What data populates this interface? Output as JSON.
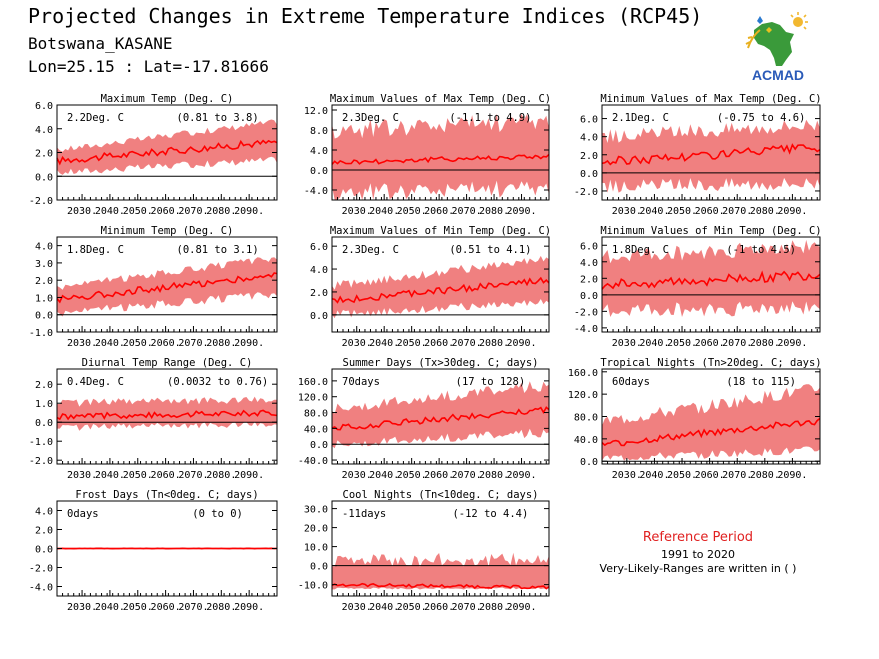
{
  "header": {
    "title": "Projected Changes in Extreme Temperature Indices (RCP45)",
    "location": "Botswana_KASANE",
    "coords": "Lon=25.15 : Lat=-17.81666"
  },
  "logo": {
    "text": "ACMAD"
  },
  "reference": {
    "title": "Reference Period",
    "period": "1991 to 2020",
    "note": "Very-Likely-Ranges are written in ( )"
  },
  "colors": {
    "band": "#f08080",
    "line": "#ff0000",
    "zero": "#000000",
    "ref_title": "#e02020"
  },
  "chart_data": [
    {
      "type": "line",
      "title": "Maximum Temp (Deg. C)",
      "mean": "2.2Deg. C",
      "range": "(0.81 to 3.8)",
      "ylim": [
        -2,
        6
      ],
      "yticks": [
        6,
        4,
        2,
        0,
        -2
      ],
      "xticks": [
        2030,
        2040,
        2050,
        2060,
        2070,
        2080,
        2090
      ],
      "x_range": [
        2021,
        2100
      ],
      "series": [
        {
          "values": {
            "start": 1.3,
            "end": 2.9,
            "noise": 0.3,
            "band_low": [
              0.3,
              1.4
            ],
            "band_high": [
              2.2,
              4.6
            ]
          }
        }
      ]
    },
    {
      "type": "line",
      "title": "Maximum Values of Max Temp (Deg. C)",
      "mean": "2.3Deg. C",
      "range": "(-1.1 to 4.9)",
      "ylim": [
        -6,
        13
      ],
      "yticks": [
        12,
        8,
        4,
        0,
        -4
      ],
      "xticks": [
        2030,
        2040,
        2050,
        2060,
        2070,
        2080,
        2090
      ],
      "x_range": [
        2021,
        2100
      ],
      "series": [
        {
          "values": {
            "start": 1.5,
            "end": 2.8,
            "noise": 0.5,
            "band_low": [
              -4.5,
              -3.5
            ],
            "band_high": [
              8,
              10
            ]
          }
        }
      ]
    },
    {
      "type": "line",
      "title": "Minimum Values of Max Temp (Deg. C)",
      "mean": "2.1Deg. C",
      "range": "(-0.75 to 4.6)",
      "ylim": [
        -3,
        7.5
      ],
      "yticks": [
        6,
        4,
        2,
        0,
        -2
      ],
      "xticks": [
        2030,
        2040,
        2050,
        2060,
        2070,
        2080,
        2090
      ],
      "x_range": [
        2021,
        2100
      ],
      "series": [
        {
          "values": {
            "start": 1.2,
            "end": 2.8,
            "noise": 0.5,
            "band_low": [
              -1.5,
              -1
            ],
            "band_high": [
              4,
              5.5
            ]
          }
        }
      ]
    },
    {
      "type": "line",
      "title": "Minimum Temp (Deg. C)",
      "mean": "1.8Deg. C",
      "range": "(0.81 to 3.1)",
      "ylim": [
        -1,
        4.5
      ],
      "yticks": [
        4,
        3,
        2,
        1,
        0,
        -1
      ],
      "xticks": [
        2030,
        2040,
        2050,
        2060,
        2070,
        2080,
        2090
      ],
      "x_range": [
        2021,
        2100
      ],
      "series": [
        {
          "values": {
            "start": 0.9,
            "end": 2.3,
            "noise": 0.2,
            "band_low": [
              0.1,
              1.2
            ],
            "band_high": [
              1.6,
              3.3
            ]
          }
        }
      ]
    },
    {
      "type": "line",
      "title": "Maximum Values of Min Temp (Deg. C)",
      "mean": "2.3Deg. C",
      "range": "(0.51 to 4.1)",
      "ylim": [
        -1.5,
        6.8
      ],
      "yticks": [
        6,
        4,
        2,
        0
      ],
      "xticks": [
        2030,
        2040,
        2050,
        2060,
        2070,
        2080,
        2090
      ],
      "x_range": [
        2021,
        2100
      ],
      "series": [
        {
          "values": {
            "start": 1.2,
            "end": 3,
            "noise": 0.3,
            "band_low": [
              0,
              1.2
            ],
            "band_high": [
              2.5,
              5
            ]
          }
        }
      ]
    },
    {
      "type": "line",
      "title": "Minimum Values of Min Temp (Deg. C)",
      "mean": "1.8Deg. C",
      "range": "(-1 to 4.5)",
      "ylim": [
        -4.5,
        7
      ],
      "yticks": [
        6,
        4,
        2,
        0,
        -2,
        -4
      ],
      "xticks": [
        2030,
        2040,
        2050,
        2060,
        2070,
        2080,
        2090
      ],
      "x_range": [
        2021,
        2100
      ],
      "series": [
        {
          "values": {
            "start": 1.2,
            "end": 2.4,
            "noise": 0.6,
            "band_low": [
              -2,
              -1.5
            ],
            "band_high": [
              4.5,
              6
            ]
          }
        }
      ]
    },
    {
      "type": "line",
      "title": "Diurnal Temp Range (Deg. C)",
      "mean": "0.4Deg. C",
      "range": "(0.0032 to 0.76)",
      "ylim": [
        -2.2,
        2.8
      ],
      "yticks": [
        2,
        1,
        0,
        -1,
        -2
      ],
      "xticks": [
        2030,
        2040,
        2050,
        2060,
        2070,
        2080,
        2090
      ],
      "x_range": [
        2021,
        2100
      ],
      "series": [
        {
          "values": {
            "start": 0.3,
            "end": 0.5,
            "noise": 0.15,
            "band_low": [
              -0.3,
              -0.1
            ],
            "band_high": [
              1,
              1.2
            ]
          }
        }
      ]
    },
    {
      "type": "line",
      "title": "Summer Days (Tx>30deg. C; days)",
      "mean": "70days",
      "range": "(17 to 128)",
      "ylim": [
        -50,
        190
      ],
      "yticks": [
        160,
        120,
        80,
        40,
        0,
        -40
      ],
      "xticks": [
        2030,
        2040,
        2050,
        2060,
        2070,
        2080,
        2090
      ],
      "x_range": [
        2021,
        2100
      ],
      "series": [
        {
          "values": {
            "start": 40,
            "end": 88,
            "noise": 8,
            "band_low": [
              0,
              30
            ],
            "band_high": [
              90,
              150
            ]
          }
        }
      ]
    },
    {
      "type": "line",
      "title": "Tropical Nights (Tn>20deg. C; days)",
      "mean": "60days",
      "range": "(18 to 115)",
      "ylim": [
        -5,
        165
      ],
      "yticks": [
        160,
        120,
        80,
        40,
        0
      ],
      "xticks": [
        2030,
        2040,
        2050,
        2060,
        2070,
        2080,
        2090
      ],
      "x_range": [
        2021,
        2100
      ],
      "series": [
        {
          "values": {
            "start": 30,
            "end": 72,
            "noise": 6,
            "band_low": [
              5,
              20
            ],
            "band_high": [
              70,
              130
            ]
          }
        }
      ]
    },
    {
      "type": "line",
      "title": "Frost Days (Tn<0deg. C; days)",
      "mean": "0days",
      "range": "(0 to 0)",
      "ylim": [
        -5,
        5
      ],
      "yticks": [
        4,
        2,
        0,
        -2,
        -4
      ],
      "xticks": [
        2030,
        2040,
        2050,
        2060,
        2070,
        2080,
        2090
      ],
      "x_range": [
        2021,
        2100
      ],
      "series": [
        {
          "values": {
            "start": 0,
            "end": 0,
            "noise": 0,
            "band_low": [
              -0.1,
              -0.1
            ],
            "band_high": [
              0.1,
              0.1
            ]
          }
        }
      ]
    },
    {
      "type": "line",
      "title": "Cool Nights (Tn<10deg. C; days)",
      "mean": "-11days",
      "range": "(-12 to 4.4)",
      "ylim": [
        -16,
        34
      ],
      "yticks": [
        30,
        20,
        10,
        0,
        -10
      ],
      "xticks": [
        2030,
        2040,
        2050,
        2060,
        2070,
        2080,
        2090
      ],
      "x_range": [
        2021,
        2100
      ],
      "series": [
        {
          "values": {
            "start": -10,
            "end": -11.5,
            "noise": 0.8,
            "band_low": [
              -12,
              -12
            ],
            "band_high": [
              3,
              3.5
            ]
          }
        }
      ]
    }
  ]
}
